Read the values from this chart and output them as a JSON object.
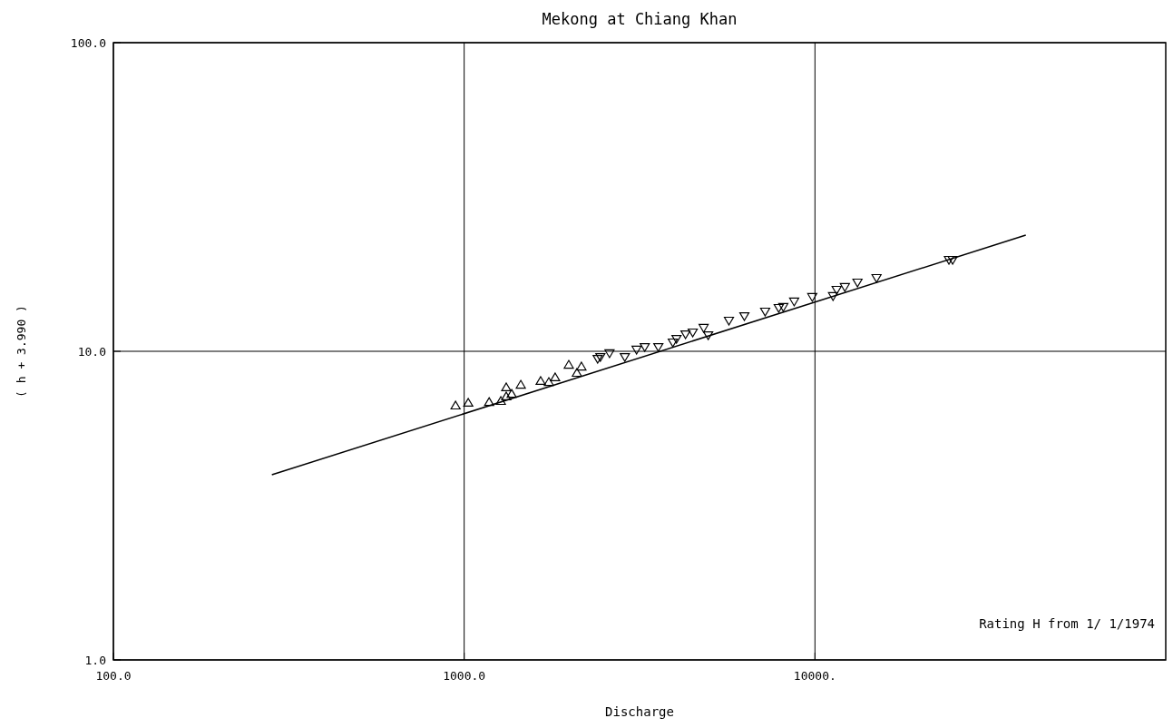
{
  "chart_data": {
    "type": "scatter",
    "title": "Mekong at Chiang Khan",
    "xlabel": "Discharge",
    "ylabel": "( h + 3.990 )",
    "log": "xy",
    "grid": true,
    "xlim": [
      100,
      100000
    ],
    "xticks": [
      {
        "value": 100,
        "label": "100.0"
      },
      {
        "value": 1000,
        "label": "1000.0"
      },
      {
        "value": 10000,
        "label": "10000."
      }
    ],
    "ylim": [
      1,
      100
    ],
    "yticks": [
      {
        "value": 1,
        "label": "1.0"
      },
      {
        "value": 10,
        "label": "10.0"
      },
      {
        "value": 100,
        "label": "100.0"
      }
    ],
    "annotations": [
      "Rating H from  1/ 1/1974"
    ],
    "series": [
      {
        "marker": "triangle",
        "color": "#000000",
        "x": [
          945,
          1027,
          1178,
          1272,
          1318,
          1318,
          1366,
          1450,
          1652,
          1743,
          1817,
          1987,
          2096,
          2159
        ],
        "values": [
          6.66,
          6.8,
          6.84,
          6.89,
          7.63,
          7.13,
          7.27,
          7.78,
          8.0,
          7.94,
          8.22,
          9.03,
          8.5,
          8.91
        ]
      },
      {
        "marker": "triangle-down",
        "color": "#000000",
        "x": [
          2402,
          2445,
          2596,
          2871,
          3101,
          3272,
          3577,
          3934,
          4030,
          4276,
          4483,
          4816,
          4961,
          5686,
          6292,
          7211,
          7885,
          8123,
          8723,
          9824,
          11260,
          11530,
          12170,
          13220,
          14980,
          24100,
          24690
        ],
        "values": [
          9.47,
          9.6,
          9.87,
          9.6,
          10.14,
          10.34,
          10.34,
          10.7,
          10.99,
          11.37,
          11.53,
          11.93,
          11.29,
          12.59,
          13.02,
          13.47,
          13.84,
          13.94,
          14.52,
          15.02,
          15.12,
          15.85,
          16.18,
          16.73,
          17.31,
          19.82,
          19.82
        ]
      },
      {
        "type": "line",
        "color": "#000000",
        "x": [
          283,
          39900
        ],
        "values": [
          3.98,
          23.8
        ]
      }
    ]
  }
}
